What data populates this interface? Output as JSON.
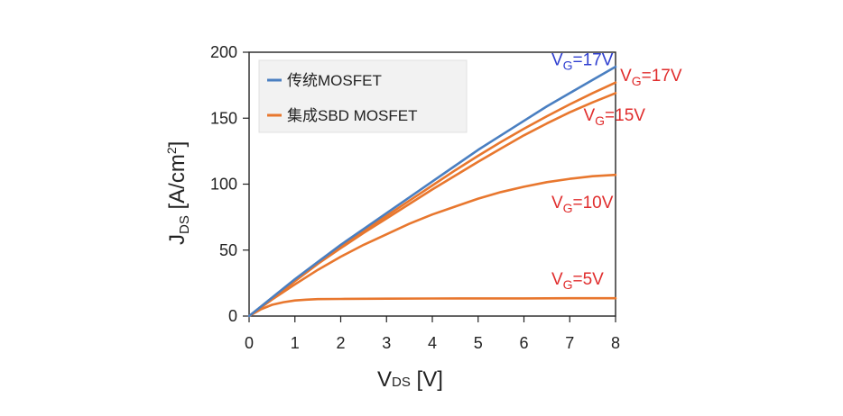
{
  "chart_data": {
    "type": "line",
    "xlim": [
      0,
      8
    ],
    "ylim": [
      0,
      200
    ],
    "xticks": [
      "0",
      "1",
      "2",
      "3",
      "4",
      "5",
      "6",
      "7",
      "8"
    ],
    "yticks": [
      "0",
      "50",
      "100",
      "150",
      "200"
    ],
    "xlabel": {
      "main": "V",
      "sub": "DS",
      "rest": " [V]"
    },
    "ylabel": {
      "main": "J",
      "sub": "DS",
      "rest": "  [A/cm",
      "sup": "2",
      "end": "]"
    },
    "legend": {
      "placement": "top-left",
      "entries": [
        {
          "label": "传统MOSFET",
          "color": "#4a7fc1"
        },
        {
          "label": "集成SBD MOSFET",
          "color": "#e8772e"
        }
      ]
    },
    "series": [
      {
        "legend": "传统MOSFET",
        "color": "#4a7fc1",
        "x": [
          0,
          0.5,
          1,
          1.5,
          2,
          2.5,
          3,
          3.5,
          4,
          4.5,
          5,
          5.5,
          6,
          6.5,
          7,
          7.5,
          8
        ],
        "y": [
          0,
          14,
          28,
          41,
          54,
          66,
          78,
          90,
          102,
          114,
          126,
          137,
          148,
          159,
          169,
          179,
          189
        ]
      },
      {
        "legend": "集成SBD MOSFET",
        "color": "#e8772e",
        "x": [
          0,
          0.5,
          1,
          1.5,
          2,
          2.5,
          3,
          3.5,
          4,
          4.5,
          5,
          5.5,
          6,
          6.5,
          7,
          7.5,
          8
        ],
        "y": [
          0,
          13.5,
          27,
          40,
          52.5,
          64.5,
          76,
          87.5,
          99,
          110.5,
          121.5,
          132,
          142,
          151.5,
          160.5,
          169,
          177
        ]
      },
      {
        "legend": "集成SBD MOSFET",
        "color": "#e8772e",
        "x": [
          0,
          0.5,
          1,
          1.5,
          2,
          2.5,
          3,
          3.5,
          4,
          4.5,
          5,
          5.5,
          6,
          6.5,
          7,
          7.5,
          8
        ],
        "y": [
          0,
          13,
          26.5,
          39.5,
          51.5,
          63,
          74,
          85,
          96,
          106.5,
          117,
          127,
          137,
          146,
          154.5,
          162,
          169
        ]
      },
      {
        "legend": "集成SBD MOSFET",
        "color": "#e8772e",
        "x": [
          0,
          0.5,
          1,
          1.5,
          2,
          2.5,
          3,
          3.5,
          4,
          4.5,
          5,
          5.5,
          6,
          6.5,
          7,
          7.5,
          8
        ],
        "y": [
          0,
          12.5,
          24,
          35,
          45,
          54,
          62,
          70,
          77,
          83,
          89,
          94,
          98,
          101.5,
          104,
          106,
          107
        ]
      },
      {
        "legend": "集成SBD MOSFET",
        "color": "#e8772e",
        "x": [
          0,
          0.25,
          0.5,
          0.75,
          1,
          1.25,
          1.5,
          2,
          3,
          4,
          5,
          6,
          7,
          8
        ],
        "y": [
          0,
          5,
          8.5,
          10.5,
          11.8,
          12.4,
          12.8,
          13,
          13.2,
          13.3,
          13.4,
          13.4,
          13.5,
          13.5
        ]
      }
    ],
    "annotations": [
      {
        "main": "V",
        "sub": "G",
        "rest": "=17V",
        "color": "#2f3fd0",
        "x": 6.6,
        "y": 190
      },
      {
        "main": "V",
        "sub": "G",
        "rest": "=17V",
        "color": "#e02d2d",
        "x": 8.1,
        "y": 178
      },
      {
        "main": "V",
        "sub": "G",
        "rest": "=15V",
        "color": "#e02d2d",
        "x": 7.3,
        "y": 148
      },
      {
        "main": "V",
        "sub": "G",
        "rest": "=10V",
        "color": "#e02d2d",
        "x": 6.6,
        "y": 82
      },
      {
        "main": "V",
        "sub": "G",
        "rest": "=5V",
        "color": "#e02d2d",
        "x": 6.6,
        "y": 24
      }
    ]
  }
}
